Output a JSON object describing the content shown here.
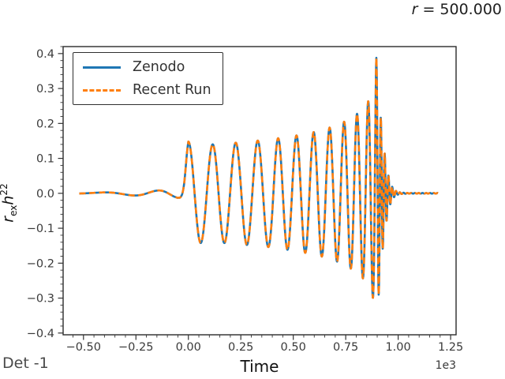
{
  "figure": {
    "title_var": "r",
    "title_rest": " = 500.000",
    "corner_label": "Det -1",
    "background": "#ffffff"
  },
  "chart_data": {
    "type": "line",
    "title": "r = 500.000",
    "xlabel": "Time",
    "x_offset_label": "1e3",
    "ylabel": {
      "plain": "r_ex h^22",
      "base_var": "r",
      "base_sub": "ex",
      "mode_var": "h",
      "mode_sup": "22"
    },
    "xlim": [
      -597,
      1276
    ],
    "ylim": [
      -0.405,
      0.42
    ],
    "x_ticks": [
      {
        "value": -500,
        "label": "−0.50"
      },
      {
        "value": -250,
        "label": "−0.25"
      },
      {
        "value": 0,
        "label": "0.00"
      },
      {
        "value": 250,
        "label": "0.25"
      },
      {
        "value": 500,
        "label": "0.50"
      },
      {
        "value": 750,
        "label": "0.75"
      },
      {
        "value": 1000,
        "label": "1.00"
      },
      {
        "value": 1250,
        "label": "1.25"
      }
    ],
    "y_ticks": [
      {
        "value": 0.4,
        "label": "0.4"
      },
      {
        "value": 0.3,
        "label": "0.3"
      },
      {
        "value": 0.2,
        "label": "0.2"
      },
      {
        "value": 0.1,
        "label": "0.1"
      },
      {
        "value": 0.0,
        "label": "0.0"
      },
      {
        "value": -0.1,
        "label": "−0.1"
      },
      {
        "value": -0.2,
        "label": "−0.2"
      },
      {
        "value": -0.3,
        "label": "−0.3"
      },
      {
        "value": -0.4,
        "label": "−0.4"
      }
    ],
    "x_minor_tick_step": 50,
    "y_minor_tick_step": 0.02,
    "grid": false,
    "legend_position": "upper-left",
    "series": [
      {
        "name": "Zenodo",
        "color": "#1f77b4",
        "line_style": "solid",
        "line_width": 2.6
      },
      {
        "name": "Recent Run",
        "color": "#ff7f0e",
        "line_style": "dashed",
        "line_width": 2.6,
        "dash_pattern": [
          8,
          4.5
        ]
      }
    ],
    "waveform_model": {
      "model": "y(t) = amplitude_envelope(t) * cos(phase(t)); both overlapping series depict the same binary-merger h22 waveform",
      "t_start": -520,
      "t_end": 1190,
      "dt": 1,
      "merger_peak": {
        "t": 896,
        "value": 0.39
      },
      "deepest_trough": -0.355,
      "inspiral_amplitude": 0.15,
      "envelope_keypoints": [
        [
          -520,
          0.001
        ],
        [
          -430,
          0.002
        ],
        [
          -340,
          0.004
        ],
        [
          -270,
          0.006
        ],
        [
          -210,
          0.0075
        ],
        [
          -150,
          0.008
        ],
        [
          -110,
          0.0085
        ],
        [
          -80,
          0.009
        ],
        [
          -60,
          0.011
        ],
        [
          -45,
          0.016
        ],
        [
          -32,
          0.03
        ],
        [
          -20,
          0.065
        ],
        [
          -8,
          0.12
        ],
        [
          0,
          0.148
        ],
        [
          40,
          0.143
        ],
        [
          120,
          0.14
        ],
        [
          250,
          0.146
        ],
        [
          400,
          0.155
        ],
        [
          520,
          0.166
        ],
        [
          620,
          0.178
        ],
        [
          700,
          0.193
        ],
        [
          760,
          0.21
        ],
        [
          810,
          0.23
        ],
        [
          850,
          0.255
        ],
        [
          875,
          0.285
        ],
        [
          888,
          0.33
        ],
        [
          896,
          0.388
        ],
        [
          903,
          0.33
        ],
        [
          911,
          0.26
        ],
        [
          919,
          0.205
        ],
        [
          927,
          0.158
        ],
        [
          935,
          0.118
        ],
        [
          943,
          0.085
        ],
        [
          951,
          0.058
        ],
        [
          959,
          0.038
        ],
        [
          967,
          0.024
        ],
        [
          976,
          0.014
        ],
        [
          986,
          0.008
        ],
        [
          998,
          0.004
        ],
        [
          1015,
          0.002
        ],
        [
          1050,
          0.001
        ],
        [
          1190,
          0.001
        ]
      ],
      "period_keypoints": [
        [
          -600,
          340
        ],
        [
          -320,
          300
        ],
        [
          -220,
          260
        ],
        [
          -140,
          200
        ],
        [
          -80,
          150
        ],
        [
          -40,
          120
        ],
        [
          0,
          110
        ],
        [
          120,
          104
        ],
        [
          240,
          99
        ],
        [
          360,
          94
        ],
        [
          480,
          87
        ],
        [
          570,
          81
        ],
        [
          650,
          75
        ],
        [
          720,
          68
        ],
        [
          780,
          61
        ],
        [
          830,
          54
        ],
        [
          865,
          46
        ],
        [
          885,
          37
        ],
        [
          895,
          28
        ],
        [
          903,
          22
        ],
        [
          915,
          19
        ],
        [
          935,
          18
        ],
        [
          1190,
          18
        ]
      ],
      "phase_anchor": {
        "t": 896,
        "phase": 0
      },
      "early_anchor": {
        "t": 0,
        "snap": "2pi",
        "taper_until": 400
      }
    }
  }
}
